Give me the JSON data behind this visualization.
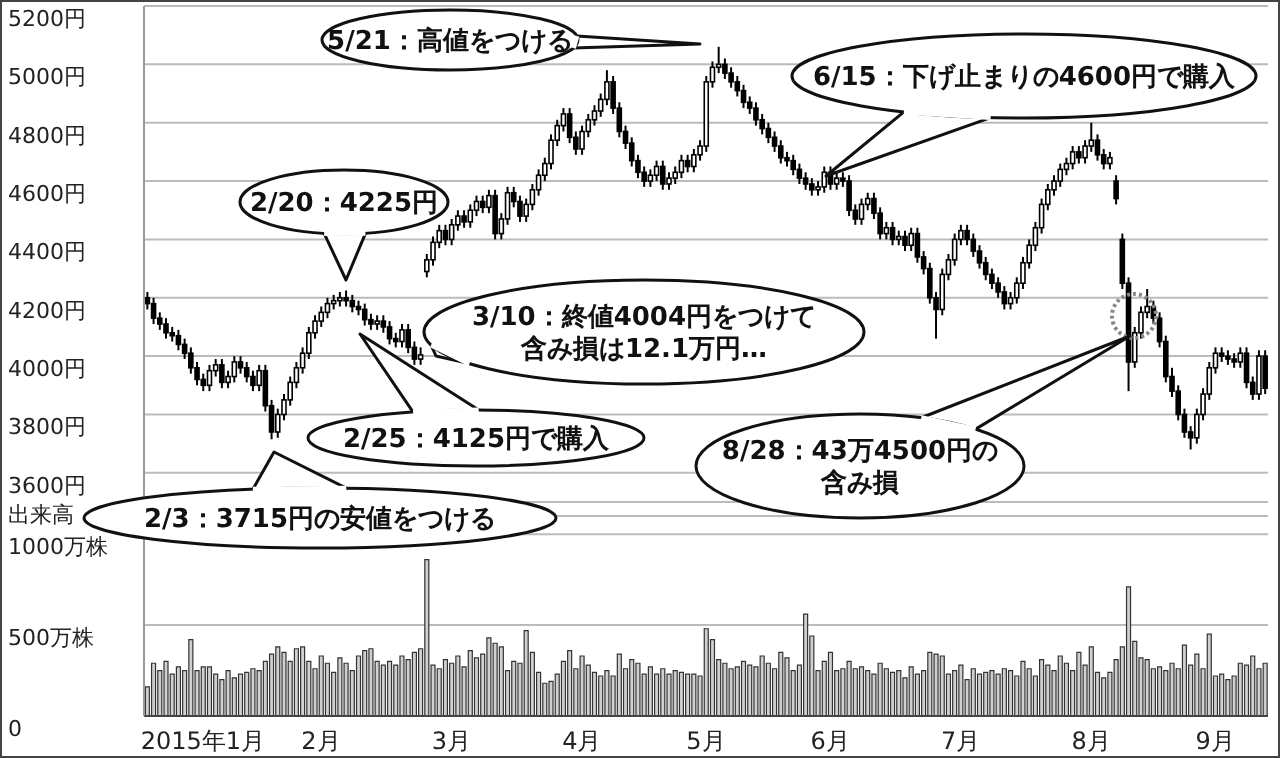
{
  "chart_data": [
    {
      "type": "candlestick",
      "color": "#000000",
      "grid": "y",
      "tick_labels": "y",
      "ylim": [
        3500,
        5200
      ],
      "yticks": [
        {
          "value": 3600,
          "label": "3600円"
        },
        {
          "value": 3800,
          "label": "3800円"
        },
        {
          "value": 4000,
          "label": "4000円"
        },
        {
          "value": 4200,
          "label": "4200円"
        },
        {
          "value": 4400,
          "label": "4400円"
        },
        {
          "value": 4600,
          "label": "4600円"
        },
        {
          "value": 4800,
          "label": "4800円"
        },
        {
          "value": 5000,
          "label": "5000円"
        },
        {
          "value": 5200,
          "label": "5200円"
        }
      ],
      "ohlc": [
        [
          4200,
          4220,
          4160,
          4180
        ],
        [
          4180,
          4200,
          4110,
          4130
        ],
        [
          4130,
          4150,
          4090,
          4110
        ],
        [
          4110,
          4130,
          4060,
          4080
        ],
        [
          4080,
          4100,
          4050,
          4070
        ],
        [
          4070,
          4090,
          4020,
          4040
        ],
        [
          4040,
          4060,
          3990,
          4010
        ],
        [
          4010,
          4030,
          3940,
          3960
        ],
        [
          3960,
          3980,
          3900,
          3920
        ],
        [
          3920,
          3940,
          3880,
          3900
        ],
        [
          3900,
          3970,
          3880,
          3950
        ],
        [
          3950,
          3990,
          3930,
          3970
        ],
        [
          3970,
          3990,
          3890,
          3910
        ],
        [
          3910,
          3950,
          3890,
          3930
        ],
        [
          3930,
          4000,
          3910,
          3980
        ],
        [
          3980,
          4000,
          3940,
          3960
        ],
        [
          3960,
          3980,
          3910,
          3930
        ],
        [
          3930,
          3950,
          3880,
          3900
        ],
        [
          3900,
          3970,
          3880,
          3950
        ],
        [
          3950,
          3970,
          3810,
          3830
        ],
        [
          3830,
          3850,
          3715,
          3740
        ],
        [
          3740,
          3820,
          3720,
          3800
        ],
        [
          3800,
          3870,
          3780,
          3850
        ],
        [
          3850,
          3930,
          3830,
          3910
        ],
        [
          3910,
          3980,
          3890,
          3960
        ],
        [
          3960,
          4030,
          3940,
          4010
        ],
        [
          4010,
          4100,
          3990,
          4080
        ],
        [
          4080,
          4140,
          4060,
          4120
        ],
        [
          4120,
          4170,
          4100,
          4150
        ],
        [
          4150,
          4200,
          4130,
          4180
        ],
        [
          4180,
          4210,
          4160,
          4190
        ],
        [
          4190,
          4220,
          4170,
          4200
        ],
        [
          4200,
          4225,
          4170,
          4190
        ],
        [
          4190,
          4210,
          4150,
          4170
        ],
        [
          4170,
          4190,
          4140,
          4160
        ],
        [
          4160,
          4180,
          4105,
          4125
        ],
        [
          4125,
          4145,
          4090,
          4110
        ],
        [
          4110,
          4140,
          4090,
          4120
        ],
        [
          4120,
          4140,
          4080,
          4100
        ],
        [
          4100,
          4120,
          4040,
          4060
        ],
        [
          4060,
          4080,
          4030,
          4050
        ],
        [
          4050,
          4110,
          4030,
          4090
        ],
        [
          4090,
          4110,
          4010,
          4030
        ],
        [
          4030,
          4050,
          3970,
          3990
        ],
        [
          3990,
          4030,
          3970,
          4004
        ],
        [
          4290,
          4350,
          4270,
          4330
        ],
        [
          4330,
          4410,
          4310,
          4390
        ],
        [
          4390,
          4450,
          4370,
          4430
        ],
        [
          4430,
          4450,
          4380,
          4400
        ],
        [
          4400,
          4470,
          4380,
          4450
        ],
        [
          4450,
          4500,
          4430,
          4480
        ],
        [
          4480,
          4500,
          4440,
          4460
        ],
        [
          4460,
          4520,
          4440,
          4500
        ],
        [
          4500,
          4550,
          4480,
          4530
        ],
        [
          4530,
          4550,
          4490,
          4510
        ],
        [
          4510,
          4570,
          4490,
          4550
        ],
        [
          4550,
          4570,
          4400,
          4420
        ],
        [
          4420,
          4490,
          4400,
          4470
        ],
        [
          4470,
          4580,
          4450,
          4560
        ],
        [
          4560,
          4580,
          4510,
          4530
        ],
        [
          4530,
          4550,
          4460,
          4480
        ],
        [
          4480,
          4540,
          4460,
          4520
        ],
        [
          4520,
          4590,
          4500,
          4570
        ],
        [
          4570,
          4640,
          4550,
          4620
        ],
        [
          4620,
          4680,
          4600,
          4660
        ],
        [
          4660,
          4760,
          4640,
          4740
        ],
        [
          4740,
          4810,
          4720,
          4790
        ],
        [
          4790,
          4850,
          4770,
          4830
        ],
        [
          4830,
          4850,
          4730,
          4750
        ],
        [
          4750,
          4770,
          4690,
          4710
        ],
        [
          4710,
          4790,
          4690,
          4770
        ],
        [
          4770,
          4830,
          4750,
          4810
        ],
        [
          4810,
          4860,
          4790,
          4840
        ],
        [
          4840,
          4900,
          4820,
          4880
        ],
        [
          4880,
          4980,
          4860,
          4940
        ],
        [
          4940,
          4960,
          4830,
          4850
        ],
        [
          4850,
          4870,
          4750,
          4770
        ],
        [
          4770,
          4790,
          4710,
          4730
        ],
        [
          4730,
          4750,
          4650,
          4670
        ],
        [
          4670,
          4690,
          4610,
          4630
        ],
        [
          4630,
          4650,
          4580,
          4600
        ],
        [
          4600,
          4640,
          4580,
          4620
        ],
        [
          4620,
          4670,
          4600,
          4650
        ],
        [
          4650,
          4670,
          4570,
          4590
        ],
        [
          4590,
          4630,
          4570,
          4610
        ],
        [
          4610,
          4650,
          4590,
          4630
        ],
        [
          4630,
          4690,
          4610,
          4670
        ],
        [
          4670,
          4690,
          4630,
          4650
        ],
        [
          4650,
          4710,
          4630,
          4690
        ],
        [
          4690,
          4740,
          4670,
          4720
        ],
        [
          4720,
          4960,
          4700,
          4940
        ],
        [
          4940,
          5010,
          4920,
          4990
        ],
        [
          4990,
          5060,
          4970,
          5000
        ],
        [
          5000,
          5020,
          4950,
          4970
        ],
        [
          4970,
          4990,
          4920,
          4940
        ],
        [
          4940,
          4960,
          4890,
          4910
        ],
        [
          4910,
          4930,
          4850,
          4870
        ],
        [
          4870,
          4890,
          4830,
          4850
        ],
        [
          4850,
          4870,
          4790,
          4810
        ],
        [
          4810,
          4830,
          4760,
          4780
        ],
        [
          4780,
          4800,
          4730,
          4750
        ],
        [
          4750,
          4770,
          4700,
          4720
        ],
        [
          4720,
          4740,
          4660,
          4680
        ],
        [
          4680,
          4700,
          4650,
          4670
        ],
        [
          4670,
          4690,
          4620,
          4640
        ],
        [
          4640,
          4660,
          4590,
          4610
        ],
        [
          4610,
          4630,
          4570,
          4590
        ],
        [
          4590,
          4610,
          4550,
          4570
        ],
        [
          4570,
          4600,
          4550,
          4580
        ],
        [
          4580,
          4650,
          4560,
          4630
        ],
        [
          4630,
          4650,
          4570,
          4590
        ],
        [
          4590,
          4630,
          4570,
          4610
        ],
        [
          4610,
          4630,
          4580,
          4600
        ],
        [
          4600,
          4620,
          4480,
          4500
        ],
        [
          4500,
          4520,
          4450,
          4470
        ],
        [
          4470,
          4540,
          4450,
          4520
        ],
        [
          4520,
          4560,
          4500,
          4540
        ],
        [
          4540,
          4560,
          4470,
          4490
        ],
        [
          4490,
          4510,
          4400,
          4420
        ],
        [
          4420,
          4460,
          4400,
          4440
        ],
        [
          4440,
          4460,
          4380,
          4400
        ],
        [
          4400,
          4430,
          4380,
          4410
        ],
        [
          4410,
          4430,
          4360,
          4380
        ],
        [
          4380,
          4440,
          4360,
          4420
        ],
        [
          4420,
          4440,
          4320,
          4340
        ],
        [
          4340,
          4360,
          4280,
          4300
        ],
        [
          4300,
          4320,
          4180,
          4200
        ],
        [
          4200,
          4220,
          4060,
          4160
        ],
        [
          4160,
          4300,
          4140,
          4280
        ],
        [
          4280,
          4350,
          4260,
          4330
        ],
        [
          4330,
          4420,
          4310,
          4400
        ],
        [
          4400,
          4450,
          4380,
          4430
        ],
        [
          4430,
          4450,
          4380,
          4400
        ],
        [
          4400,
          4420,
          4340,
          4360
        ],
        [
          4360,
          4380,
          4300,
          4320
        ],
        [
          4320,
          4340,
          4260,
          4280
        ],
        [
          4280,
          4300,
          4230,
          4250
        ],
        [
          4250,
          4270,
          4200,
          4220
        ],
        [
          4220,
          4240,
          4160,
          4180
        ],
        [
          4180,
          4220,
          4160,
          4200
        ],
        [
          4200,
          4270,
          4180,
          4250
        ],
        [
          4250,
          4340,
          4230,
          4320
        ],
        [
          4320,
          4400,
          4300,
          4380
        ],
        [
          4380,
          4460,
          4360,
          4440
        ],
        [
          4440,
          4540,
          4420,
          4520
        ],
        [
          4520,
          4590,
          4500,
          4570
        ],
        [
          4570,
          4620,
          4550,
          4600
        ],
        [
          4600,
          4660,
          4580,
          4640
        ],
        [
          4640,
          4680,
          4620,
          4660
        ],
        [
          4660,
          4720,
          4640,
          4700
        ],
        [
          4700,
          4720,
          4660,
          4680
        ],
        [
          4680,
          4740,
          4660,
          4720
        ],
        [
          4720,
          4800,
          4700,
          4740
        ],
        [
          4740,
          4760,
          4670,
          4690
        ],
        [
          4690,
          4710,
          4640,
          4660
        ],
        [
          4660,
          4700,
          4640,
          4680
        ],
        [
          4600,
          4620,
          4520,
          4540
        ],
        [
          4400,
          4420,
          4230,
          4250
        ],
        [
          4250,
          4270,
          3880,
          3980
        ],
        [
          3980,
          4100,
          3960,
          4080
        ],
        [
          4080,
          4170,
          4060,
          4150
        ],
        [
          4150,
          4230,
          4130,
          4170
        ],
        [
          4170,
          4190,
          4110,
          4130
        ],
        [
          4130,
          4150,
          4030,
          4050
        ],
        [
          4050,
          4070,
          3910,
          3930
        ],
        [
          3930,
          3960,
          3860,
          3880
        ],
        [
          3880,
          3900,
          3780,
          3800
        ],
        [
          3800,
          3820,
          3720,
          3740
        ],
        [
          3740,
          3760,
          3680,
          3720
        ],
        [
          3720,
          3820,
          3700,
          3800
        ],
        [
          3800,
          3890,
          3780,
          3870
        ],
        [
          3870,
          3980,
          3850,
          3960
        ],
        [
          3960,
          4030,
          3940,
          4010
        ],
        [
          4010,
          4030,
          3980,
          4000
        ],
        [
          4000,
          4020,
          3970,
          3990
        ],
        [
          3990,
          4010,
          3960,
          3980
        ],
        [
          3980,
          4030,
          3960,
          4010
        ],
        [
          4010,
          4030,
          3890,
          3910
        ],
        [
          3910,
          3930,
          3850,
          3870
        ],
        [
          3870,
          4020,
          3850,
          4000
        ],
        [
          4000,
          4020,
          3870,
          3890
        ]
      ],
      "annotations": [
        "5/21：高値をつける",
        "6/15：下げ止まりの4600円で購入",
        "2/20：4225円",
        "3/10：終値4004円をつけて含み損は12.1万円…",
        "8/28：43万4500円の含み損",
        "2/25：4125円で購入",
        "2/3：3715円の安値をつける"
      ]
    },
    {
      "type": "bar",
      "color": "#d0d0d0",
      "grid": "y",
      "ylabel": "出来高",
      "ylim": [
        0,
        1100
      ],
      "yticks": [
        0,
        {
          "value": 500,
          "label": "500万株"
        },
        {
          "value": 1000,
          "label": "1000万株"
        }
      ],
      "categories": [
        null,
        null,
        null,
        null,
        null,
        null,
        null,
        null,
        null,
        "2015年1月",
        null,
        null,
        null,
        null,
        null,
        null,
        null,
        null,
        null,
        null,
        null,
        null,
        null,
        null,
        null,
        null,
        null,
        null,
        "2月",
        null,
        null,
        null,
        null,
        null,
        null,
        null,
        null,
        null,
        null,
        null,
        null,
        null,
        null,
        null,
        null,
        null,
        null,
        null,
        null,
        "3月",
        null,
        null,
        null,
        null,
        null,
        null,
        null,
        null,
        null,
        null,
        null,
        null,
        null,
        null,
        null,
        null,
        null,
        null,
        null,
        null,
        "4月",
        null,
        null,
        null,
        null,
        null,
        null,
        null,
        null,
        null,
        null,
        null,
        null,
        null,
        null,
        null,
        null,
        null,
        null,
        null,
        "5月",
        null,
        null,
        null,
        null,
        null,
        null,
        null,
        null,
        null,
        null,
        null,
        null,
        null,
        null,
        null,
        null,
        null,
        null,
        null,
        "6月",
        null,
        null,
        null,
        null,
        null,
        null,
        null,
        null,
        null,
        null,
        null,
        null,
        null,
        null,
        null,
        null,
        null,
        null,
        null,
        null,
        "7月",
        null,
        null,
        null,
        null,
        null,
        null,
        null,
        null,
        null,
        null,
        null,
        null,
        null,
        null,
        null,
        null,
        null,
        null,
        null,
        null,
        "8月",
        null,
        null,
        null,
        null,
        null,
        null,
        null,
        null,
        null,
        null,
        null,
        null,
        null,
        null,
        null,
        null,
        null,
        null,
        null,
        "9月",
        null,
        null,
        null,
        null,
        null,
        null,
        null,
        null
      ],
      "values": [
        160,
        290,
        250,
        300,
        230,
        270,
        250,
        420,
        250,
        270,
        270,
        230,
        200,
        250,
        210,
        230,
        240,
        260,
        250,
        300,
        340,
        380,
        350,
        300,
        370,
        380,
        300,
        260,
        330,
        290,
        240,
        320,
        290,
        250,
        330,
        360,
        370,
        300,
        280,
        300,
        280,
        330,
        310,
        350,
        370,
        860,
        280,
        260,
        310,
        290,
        330,
        270,
        360,
        320,
        340,
        430,
        400,
        380,
        250,
        300,
        290,
        470,
        350,
        240,
        180,
        190,
        230,
        300,
        360,
        260,
        330,
        280,
        240,
        220,
        250,
        220,
        340,
        260,
        310,
        290,
        230,
        270,
        230,
        260,
        230,
        250,
        240,
        230,
        230,
        220,
        480,
        420,
        310,
        290,
        260,
        270,
        300,
        280,
        270,
        330,
        290,
        260,
        350,
        320,
        250,
        280,
        560,
        440,
        250,
        300,
        350,
        250,
        260,
        300,
        260,
        270,
        250,
        230,
        290,
        260,
        240,
        250,
        210,
        270,
        230,
        250,
        350,
        340,
        330,
        230,
        250,
        280,
        200,
        260,
        230,
        240,
        250,
        230,
        260,
        250,
        220,
        300,
        260,
        220,
        310,
        280,
        250,
        330,
        290,
        250,
        350,
        280,
        380,
        240,
        210,
        240,
        310,
        380,
        710,
        410,
        320,
        310,
        260,
        270,
        250,
        290,
        260,
        390,
        280,
        340,
        260,
        450,
        220,
        230,
        200,
        220,
        290,
        280,
        330,
        260,
        290
      ]
    }
  ]
}
